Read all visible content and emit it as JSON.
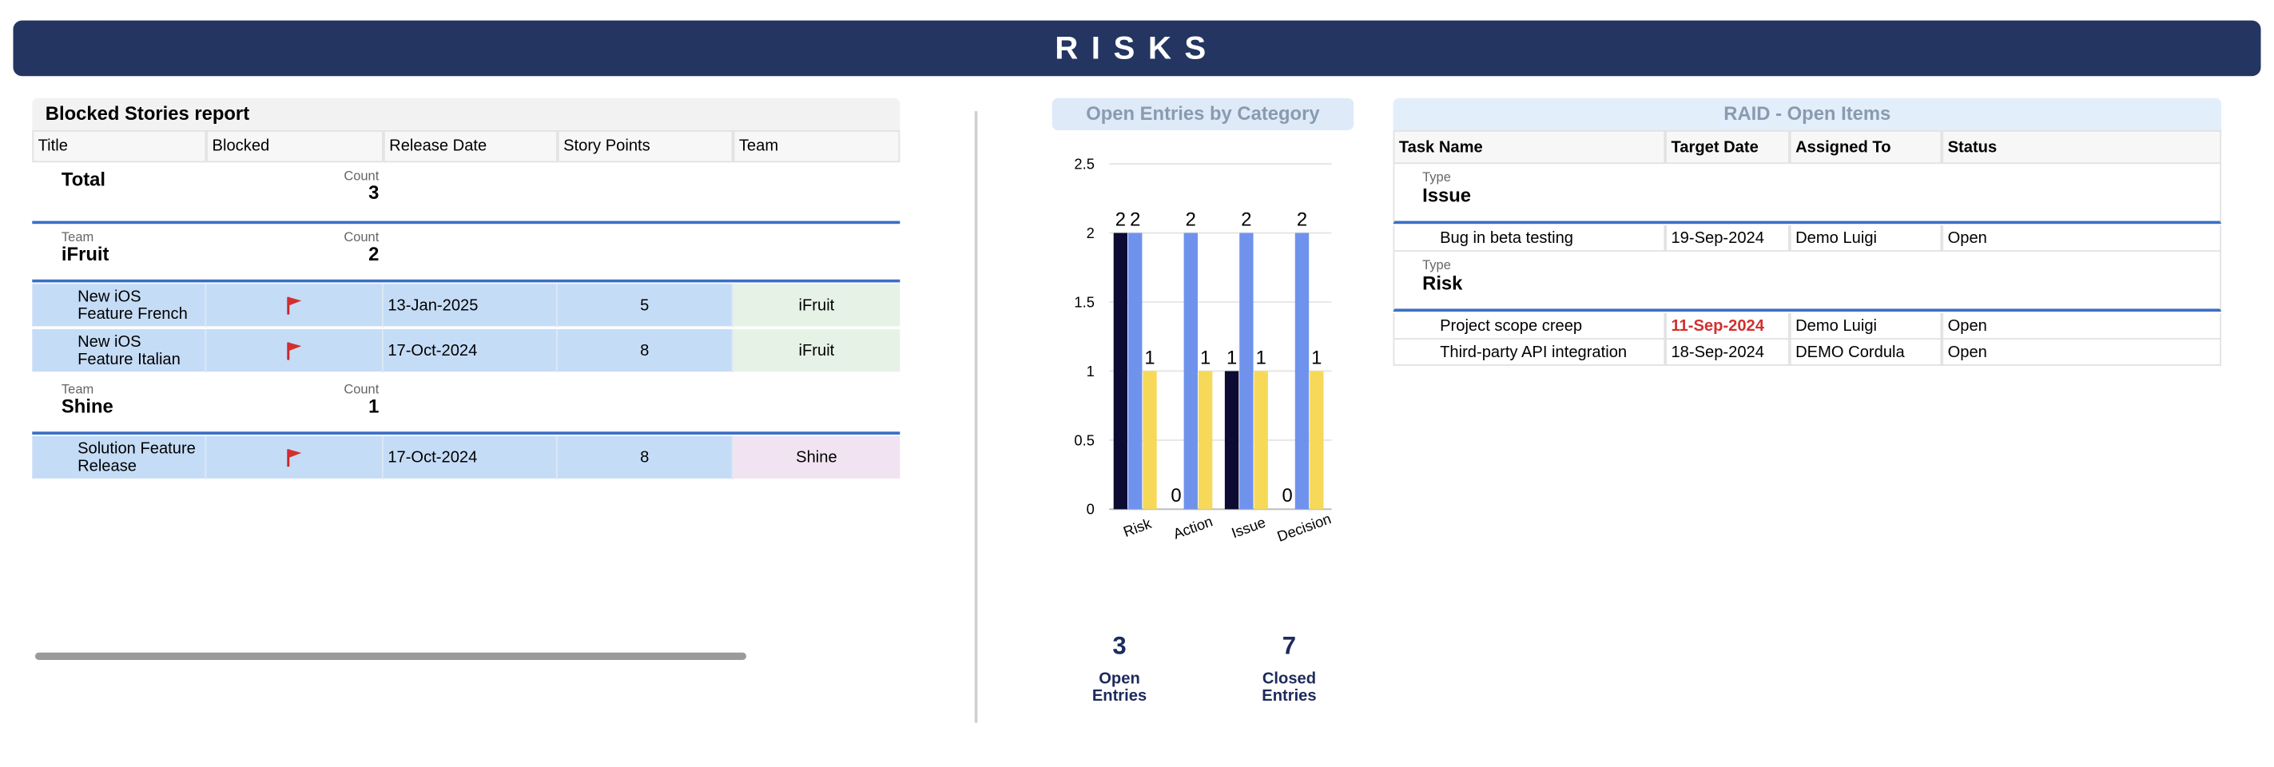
{
  "header": {
    "title": "RISKS"
  },
  "blocked_report": {
    "title": "Blocked Stories report",
    "columns": [
      "Title",
      "Blocked",
      "Release Date",
      "Story Points",
      "Team"
    ],
    "total": {
      "label": "Total",
      "count_label": "Count",
      "count": 3
    },
    "groups": [
      {
        "group_label": "Team",
        "name": "iFruit",
        "count_label": "Count",
        "count": 2,
        "rows": [
          {
            "title": "New iOS Feature French",
            "blocked": true,
            "release_date": "13-Jan-2025",
            "story_points": 5,
            "team": "iFruit",
            "team_color": "#e6f2e6"
          },
          {
            "title": "New iOS Feature Italian",
            "blocked": true,
            "release_date": "17-Oct-2024",
            "story_points": 8,
            "team": "iFruit",
            "team_color": "#e6f2e6"
          }
        ]
      },
      {
        "group_label": "Team",
        "name": "Shine",
        "count_label": "Count",
        "count": 1,
        "rows": [
          {
            "title": "Solution Feature Release",
            "blocked": true,
            "release_date": "17-Oct-2024",
            "story_points": 8,
            "team": "Shine",
            "team_color": "#f1e3f1"
          }
        ]
      }
    ]
  },
  "chart": {
    "type": "bar",
    "title": "Open Entries by Category",
    "categories": [
      "Risk",
      "Action",
      "Issue",
      "Decision"
    ],
    "series": [
      {
        "color": "#0b0b33",
        "values": [
          2,
          0,
          1,
          0
        ]
      },
      {
        "color": "#6f93ec",
        "values": [
          2,
          2,
          2,
          2
        ]
      },
      {
        "color": "#f7d959",
        "values": [
          1,
          1,
          1,
          1
        ]
      }
    ],
    "ylim": [
      0,
      2.5
    ],
    "yticks": [
      0,
      0.5,
      1,
      1.5,
      2,
      2.5
    ],
    "grid": true
  },
  "kpis": [
    {
      "value": 3,
      "label": "Open Entries"
    },
    {
      "value": 7,
      "label": "Closed Entries"
    }
  ],
  "raid": {
    "title": "RAID - Open Items",
    "columns": [
      "Task Name",
      "Target Date",
      "Assigned To",
      "Status"
    ],
    "groups": [
      {
        "group_label": "Type",
        "name": "Issue",
        "rows": [
          {
            "task": "Bug in beta testing",
            "target_date": "19-Sep-2024",
            "assigned_to": "Demo Luigi",
            "status": "Open",
            "overdue": false
          }
        ]
      },
      {
        "group_label": "Type",
        "name": "Risk",
        "rows": [
          {
            "task": "Project scope creep",
            "target_date": "11-Sep-2024",
            "assigned_to": "Demo Luigi",
            "status": "Open",
            "overdue": true
          },
          {
            "task": "Third-party API integration",
            "target_date": "18-Sep-2024",
            "assigned_to": "DEMO Cordula",
            "status": "Open",
            "overdue": false
          }
        ]
      }
    ]
  }
}
